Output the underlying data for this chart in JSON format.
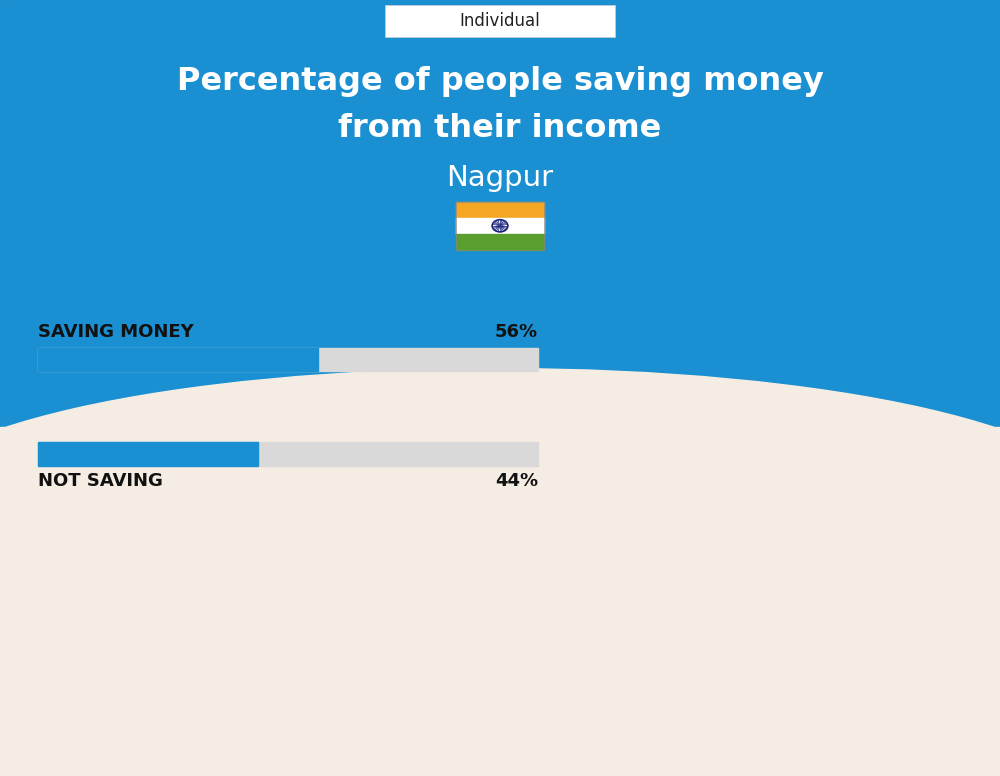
{
  "title_line1": "Percentage of people saving money",
  "title_line2": "from their income",
  "subtitle": "Nagpur",
  "tab_label": "Individual",
  "bg_color": "#f5ede3",
  "header_color": "#1a8fd1",
  "bar_color": "#1a8fd1",
  "bar_bg_color": "#d9d9d9",
  "categories": [
    "SAVING MONEY",
    "NOT SAVING"
  ],
  "values": [
    56,
    44
  ],
  "value_labels": [
    "56%",
    "44%"
  ],
  "bar_max": 100,
  "title_color": "#ffffff",
  "subtitle_color": "#ffffff",
  "label_color": "#111111",
  "tab_color": "#ffffff",
  "tab_text_color": "#222222",
  "flag_orange": "#f5a623",
  "flag_white": "#ffffff",
  "flag_green": "#5a9e2f",
  "flag_navy": "#1a237e"
}
